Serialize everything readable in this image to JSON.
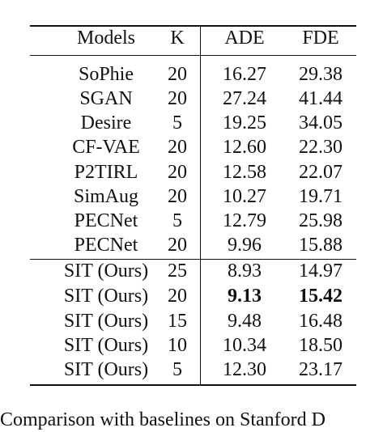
{
  "top_fragment": "",
  "table": {
    "headers": {
      "model": "Models",
      "k": "K",
      "ade": "ADE",
      "fde": "FDE"
    },
    "rows": [
      {
        "model": "SoPhie",
        "k": "20",
        "ade": "16.27",
        "fde": "29.38"
      },
      {
        "model": "SGAN",
        "k": "20",
        "ade": "27.24",
        "fde": "41.44"
      },
      {
        "model": "Desire",
        "k": "5",
        "ade": "19.25",
        "fde": "34.05"
      },
      {
        "model": "CF-VAE",
        "k": "20",
        "ade": "12.60",
        "fde": "22.30"
      },
      {
        "model": "P2TIRL",
        "k": "20",
        "ade": "12.58",
        "fde": "22.07"
      },
      {
        "model": "SimAug",
        "k": "20",
        "ade": "10.27",
        "fde": "19.71"
      },
      {
        "model": "PECNet",
        "k": "5",
        "ade": "12.79",
        "fde": "25.98"
      },
      {
        "model": "PECNet",
        "k": "20",
        "ade": "9.96",
        "fde": "15.88"
      },
      {
        "model": "SIT (Ours)",
        "k": "25",
        "ade": "8.93",
        "fde": "14.97"
      },
      {
        "model": "SIT (Ours)",
        "k": "20",
        "ade": "9.13",
        "fde": "15.42"
      },
      {
        "model": "SIT (Ours)",
        "k": "15",
        "ade": "9.48",
        "fde": "16.48"
      },
      {
        "model": "SIT (Ours)",
        "k": "10",
        "ade": "10.34",
        "fde": "18.50"
      },
      {
        "model": "SIT (Ours)",
        "k": "5",
        "ade": "12.30",
        "fde": "23.17"
      }
    ]
  },
  "caption_fragment": "Comparison with baselines on Stanford D"
}
